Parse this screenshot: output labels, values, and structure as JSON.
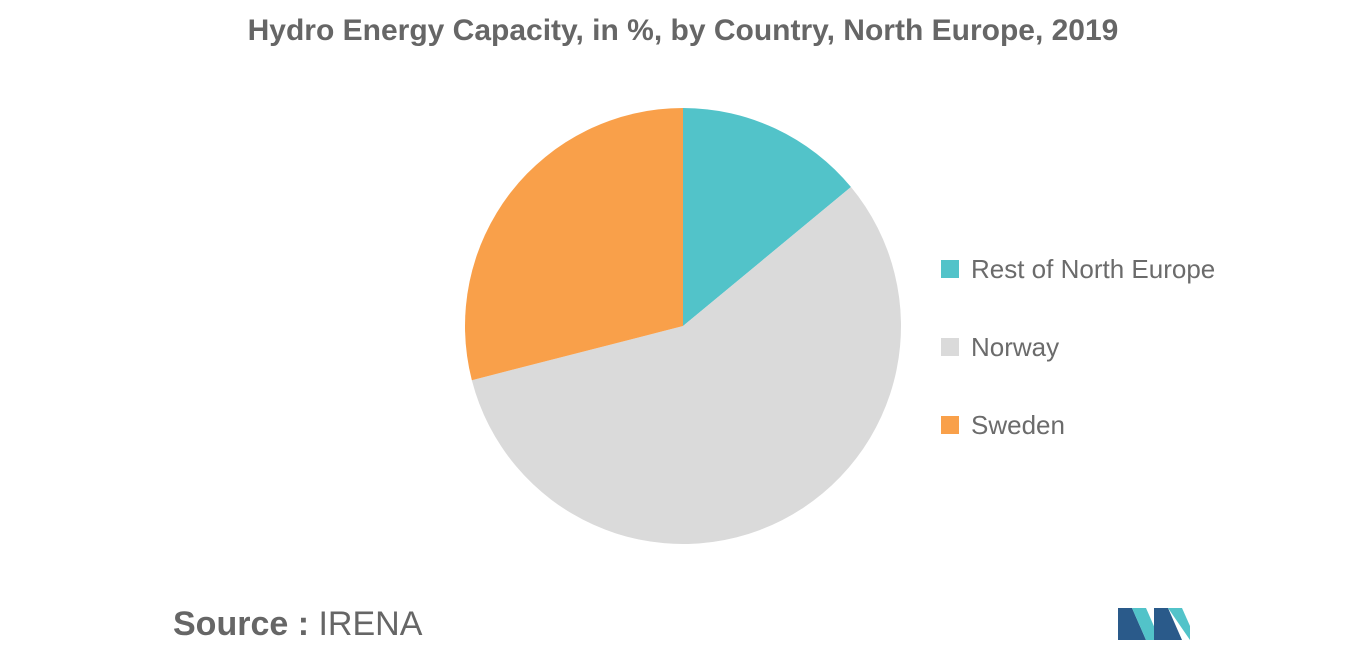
{
  "title": "Hydro Energy Capacity, in %, by Country, North Europe, 2019",
  "source": {
    "prefix": "Source : ",
    "value": "IRENA"
  },
  "chart_data": {
    "type": "pie",
    "title": "Hydro Energy Capacity, in %, by Country, North Europe, 2019",
    "start_angle_deg": 0,
    "direction": "clockwise",
    "legend_position": "right",
    "slices": [
      {
        "label": "Rest of North Europe",
        "value": 14,
        "color": "#52c3c9"
      },
      {
        "label": "Norway",
        "value": 57,
        "color": "#dadada"
      },
      {
        "label": "Sweden",
        "value": 29,
        "color": "#f9a04a"
      }
    ]
  },
  "logo": {
    "icon": "company-logo",
    "colors": [
      "#2a5a8a",
      "#52c3c9"
    ]
  }
}
